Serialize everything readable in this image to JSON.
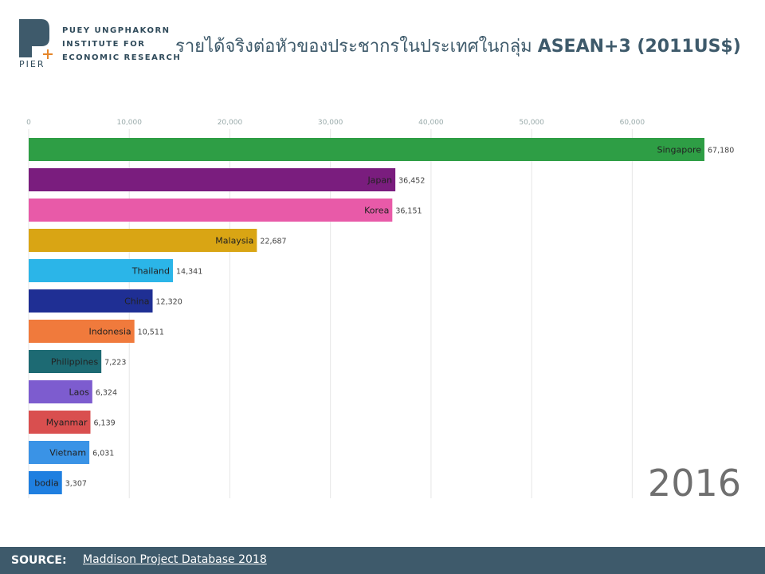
{
  "header": {
    "logo_short": "PIER",
    "logo_lines": [
      "PUEY UNGPHAKORN",
      "INSTITUTE FOR",
      "ECONOMIC RESEARCH"
    ],
    "title_thai": "รายได้จริงต่อหัวของประชากรในประเทศในกลุ่ม",
    "title_latin": "ASEAN+3 (2011US$)"
  },
  "footer": {
    "source_label": "SOURCE:",
    "source_text": "Maddison Project Database 2018"
  },
  "chart_data": {
    "type": "bar",
    "orientation": "horizontal",
    "year_label": "2016",
    "xlim": [
      0,
      67180
    ],
    "xticks": [
      0,
      10000,
      20000,
      30000,
      40000,
      50000,
      60000
    ],
    "xtick_labels": [
      "0",
      "10,000",
      "20,000",
      "30,000",
      "40,000",
      "50,000",
      "60,000"
    ],
    "categories": [
      "Singapore",
      "Japan",
      "Korea",
      "Malaysia",
      "Thailand",
      "China",
      "Indonesia",
      "Philippines",
      "Laos",
      "Myanmar",
      "Vietnam",
      "bodia"
    ],
    "values": [
      67180,
      36452,
      36151,
      22687,
      14341,
      12320,
      10511,
      7223,
      6324,
      6139,
      6031,
      3307
    ],
    "value_labels": [
      "67,180",
      "36,452",
      "36,151",
      "22,687",
      "14,341",
      "12,320",
      "10,511",
      "7,223",
      "6,324",
      "6,139",
      "6,031",
      "3,307"
    ],
    "colors": [
      "#2e9e45",
      "#7a1d7e",
      "#e85aa8",
      "#d9a514",
      "#2bb5e8",
      "#1f2f94",
      "#f07a3c",
      "#1d6a73",
      "#7d5ccf",
      "#d94f4f",
      "#3a93e6",
      "#1f7fe0"
    ],
    "grid": true
  }
}
